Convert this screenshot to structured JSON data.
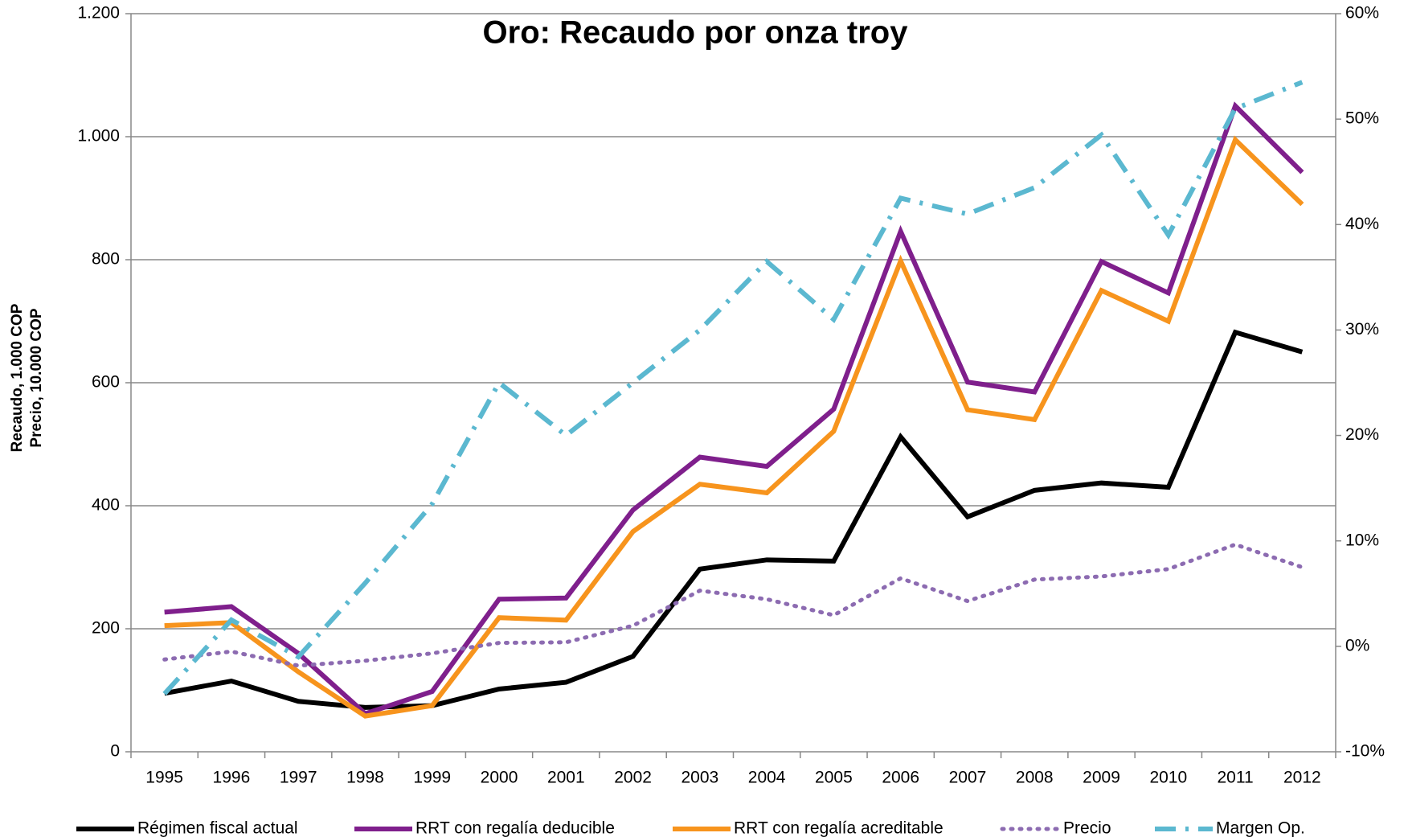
{
  "chart_data": {
    "type": "line",
    "title": "Oro: Recaudo por onza troy",
    "ylabel": [
      "Recaudo, 1.000 COP",
      "Precio, 10.000 COP"
    ],
    "categories": [
      "1995",
      "1996",
      "1997",
      "1998",
      "1999",
      "2000",
      "2001",
      "2002",
      "2003",
      "2004",
      "2005",
      "2006",
      "2007",
      "2008",
      "2009",
      "2010",
      "2011",
      "2012"
    ],
    "ylim": [
      0,
      1200
    ],
    "yticks": [
      0,
      200,
      400,
      600,
      800,
      {
        "value": 1000,
        "label": "1.000"
      },
      {
        "value": 1200,
        "label": "1.200"
      }
    ],
    "y2lim": [
      -10,
      60
    ],
    "y2ticks": [
      {
        "value": -10,
        "label": "-10%"
      },
      {
        "value": 0,
        "label": "0%"
      },
      {
        "value": 10,
        "label": "10%"
      },
      {
        "value": 20,
        "label": "20%"
      },
      {
        "value": 30,
        "label": "30%"
      },
      {
        "value": 40,
        "label": "40%"
      },
      {
        "value": 50,
        "label": "50%"
      },
      {
        "value": 60,
        "label": "60%"
      }
    ],
    "grid": true,
    "legend": "bottom",
    "series": [
      {
        "name": "Régimen fiscal actual",
        "color": "#000000",
        "dash": "solid",
        "values": [
          95,
          115,
          82,
          72,
          75,
          102,
          113,
          155,
          297,
          312,
          310,
          512,
          382,
          425,
          437,
          430,
          682,
          650
        ]
      },
      {
        "name": "RRT con regalía deducible",
        "color": "#7f1f8c",
        "dash": "solid",
        "values": [
          227,
          236,
          160,
          62,
          98,
          248,
          250,
          393,
          479,
          464,
          557,
          846,
          601,
          585,
          797,
          746,
          1050,
          942
        ]
      },
      {
        "name": "RRT con regalía acreditable",
        "color": "#f7941d",
        "dash": "solid",
        "values": [
          205,
          210,
          130,
          58,
          75,
          218,
          214,
          358,
          435,
          421,
          521,
          798,
          556,
          540,
          750,
          700,
          995,
          890
        ]
      },
      {
        "name": "Precio",
        "color": "#8c6bb1",
        "dash": "dot",
        "values": [
          150,
          163,
          140,
          148,
          160,
          177,
          178,
          205,
          262,
          248,
          222,
          282,
          245,
          280,
          285,
          297,
          337,
          300
        ]
      },
      {
        "name": "Margen Op.",
        "color": "#5bb8d0",
        "dash": "dashdot",
        "axis": "y2",
        "values": [
          -4.5,
          2.5,
          -1,
          6,
          13.5,
          25,
          20,
          25,
          30,
          36.5,
          31,
          42.5,
          41,
          43.5,
          48.5,
          39,
          51,
          53.5
        ]
      }
    ]
  }
}
